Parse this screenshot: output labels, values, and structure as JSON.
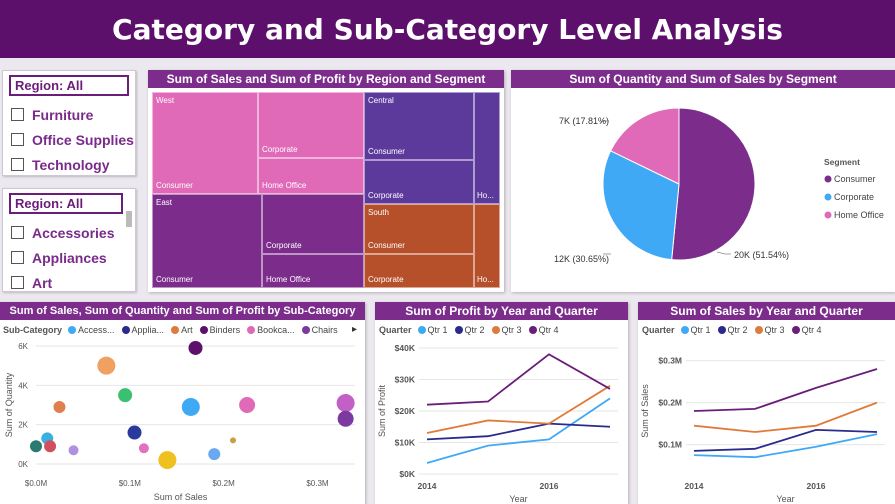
{
  "title": "Category and Sub-Category Level Analysis",
  "slicer1": {
    "header": "Region: All",
    "items": [
      "Furniture",
      "Office Supplies",
      "Technology"
    ]
  },
  "slicer2": {
    "header": "Region: All",
    "items": [
      "Accessories",
      "Appliances",
      "Art"
    ]
  },
  "treemap": {
    "title": "Sum of Sales and Sum of Profit by Region and Segment",
    "regions": {
      "west": "West",
      "east": "East",
      "central": "Central",
      "south": "South"
    },
    "segments": {
      "consumer": "Consumer",
      "corporate": "Corporate",
      "home_office": "Home Office",
      "ho_short": "Ho..."
    },
    "colors": {
      "west": "#e06ab8",
      "east": "#7c2d8c",
      "central": "#5b3a9c",
      "south": "#b5502a"
    }
  },
  "pie": {
    "title": "Sum of Quantity and Sum of Sales by Segment",
    "legend_title": "Segment",
    "labels": {
      "consumer": "20K (51.54%)",
      "corporate": "12K (30.65%)",
      "home_office": "7K (17.81%)"
    }
  },
  "scatter": {
    "title": "Sum of Sales, Sum of Quantity and Sum of Profit by Sub-Category",
    "legend_title": "Sub-Category",
    "legend": [
      "Access...",
      "Applia...",
      "Art",
      "Binders",
      "Bookca...",
      "Chairs"
    ],
    "legend_arrow": "▸"
  },
  "profit_line": {
    "title": "Sum of Profit by Year and Quarter",
    "legend_title": "Quarter",
    "legend": [
      "Qtr 1",
      "Qtr 2",
      "Qtr 3",
      "Qtr 4"
    ]
  },
  "sales_line": {
    "title": "Sum of Sales by Year and Quarter",
    "legend_title": "Quarter",
    "legend": [
      "Qtr 1",
      "Qtr 2",
      "Qtr 3",
      "Qtr 4"
    ]
  },
  "chart_data": [
    {
      "type": "pie",
      "title": "Sum of Quantity and Sum of Sales by Segment",
      "categories": [
        "Consumer",
        "Corporate",
        "Home Office"
      ],
      "values": [
        51.54,
        30.65,
        17.81
      ],
      "colors": [
        "#7c2d8c",
        "#3fa9f5",
        "#e06ab8"
      ],
      "legend": "right"
    },
    {
      "type": "scatter",
      "title": "Sum of Sales, Sum of Quantity and Sum of Profit by Sub-Category",
      "xlabel": "Sum of Sales",
      "ylabel": "Sum of Quantity",
      "xticks": [
        "$0.0M",
        "$0.1M",
        "$0.2M",
        "$0.3M"
      ],
      "yticks": [
        "0K",
        "2K",
        "4K",
        "6K"
      ],
      "xlim": [
        0,
        0.34
      ],
      "ylim": [
        0,
        6
      ],
      "points": [
        {
          "x": 0.17,
          "y": 5.9,
          "r": 7,
          "color": "#5c0f6b"
        },
        {
          "x": 0.075,
          "y": 5.0,
          "r": 9,
          "color": "#f0a060"
        },
        {
          "x": 0.095,
          "y": 3.5,
          "r": 7,
          "color": "#3ac070"
        },
        {
          "x": 0.025,
          "y": 2.9,
          "r": 6,
          "color": "#e08050"
        },
        {
          "x": 0.165,
          "y": 2.9,
          "r": 9,
          "color": "#3fa9f5"
        },
        {
          "x": 0.225,
          "y": 3.0,
          "r": 8,
          "color": "#e06ab8"
        },
        {
          "x": 0.33,
          "y": 3.1,
          "r": 9,
          "color": "#c260c8"
        },
        {
          "x": 0.33,
          "y": 2.3,
          "r": 8,
          "color": "#7c3aa0"
        },
        {
          "x": 0.105,
          "y": 1.6,
          "r": 7,
          "color": "#2a3a9c"
        },
        {
          "x": 0.012,
          "y": 1.3,
          "r": 6,
          "color": "#3ab0e0"
        },
        {
          "x": 0.21,
          "y": 1.2,
          "r": 3,
          "color": "#c8a040"
        },
        {
          "x": 0.0,
          "y": 0.9,
          "r": 6,
          "color": "#2a7a70"
        },
        {
          "x": 0.015,
          "y": 0.9,
          "r": 6,
          "color": "#d05060"
        },
        {
          "x": 0.04,
          "y": 0.7,
          "r": 5,
          "color": "#b090e0"
        },
        {
          "x": 0.115,
          "y": 0.8,
          "r": 5,
          "color": "#e070c0"
        },
        {
          "x": 0.19,
          "y": 0.5,
          "r": 6,
          "color": "#6aa8f0"
        },
        {
          "x": 0.14,
          "y": 0.2,
          "r": 9,
          "color": "#f0c020"
        }
      ]
    },
    {
      "type": "line",
      "title": "Sum of Profit by Year and Quarter",
      "xlabel": "Year",
      "ylabel": "Sum of Profit",
      "xticks": [
        "2014",
        "2016"
      ],
      "yticks": [
        "$0K",
        "$10K",
        "$20K",
        "$30K",
        "$40K"
      ],
      "ylim": [
        0,
        40
      ],
      "x": [
        2014,
        2015,
        2016,
        2017
      ],
      "series": [
        {
          "name": "Qtr 1",
          "values": [
            3.5,
            9,
            11,
            24
          ],
          "color": "#3fa9f5"
        },
        {
          "name": "Qtr 2",
          "values": [
            11,
            12,
            16,
            15
          ],
          "color": "#2a2a8c"
        },
        {
          "name": "Qtr 3",
          "values": [
            13,
            17,
            16,
            28
          ],
          "color": "#e07a3a"
        },
        {
          "name": "Qtr 4",
          "values": [
            22,
            23,
            38,
            27
          ],
          "color": "#6b1d7a"
        }
      ]
    },
    {
      "type": "line",
      "title": "Sum of Sales by Year and Quarter",
      "xlabel": "Year",
      "ylabel": "Sum of Sales",
      "xticks": [
        "2014",
        "2016"
      ],
      "yticks": [
        "$0.1M",
        "$0.2M",
        "$0.3M"
      ],
      "ylim": [
        0.03,
        0.33
      ],
      "x": [
        2014,
        2015,
        2016,
        2017
      ],
      "series": [
        {
          "name": "Qtr 1",
          "values": [
            0.075,
            0.07,
            0.095,
            0.125
          ],
          "color": "#3fa9f5"
        },
        {
          "name": "Qtr 2",
          "values": [
            0.085,
            0.09,
            0.135,
            0.13
          ],
          "color": "#2a2a8c"
        },
        {
          "name": "Qtr 3",
          "values": [
            0.145,
            0.13,
            0.145,
            0.2
          ],
          "color": "#e07a3a"
        },
        {
          "name": "Qtr 4",
          "values": [
            0.18,
            0.185,
            0.235,
            0.28
          ],
          "color": "#6b1d7a"
        }
      ]
    }
  ]
}
